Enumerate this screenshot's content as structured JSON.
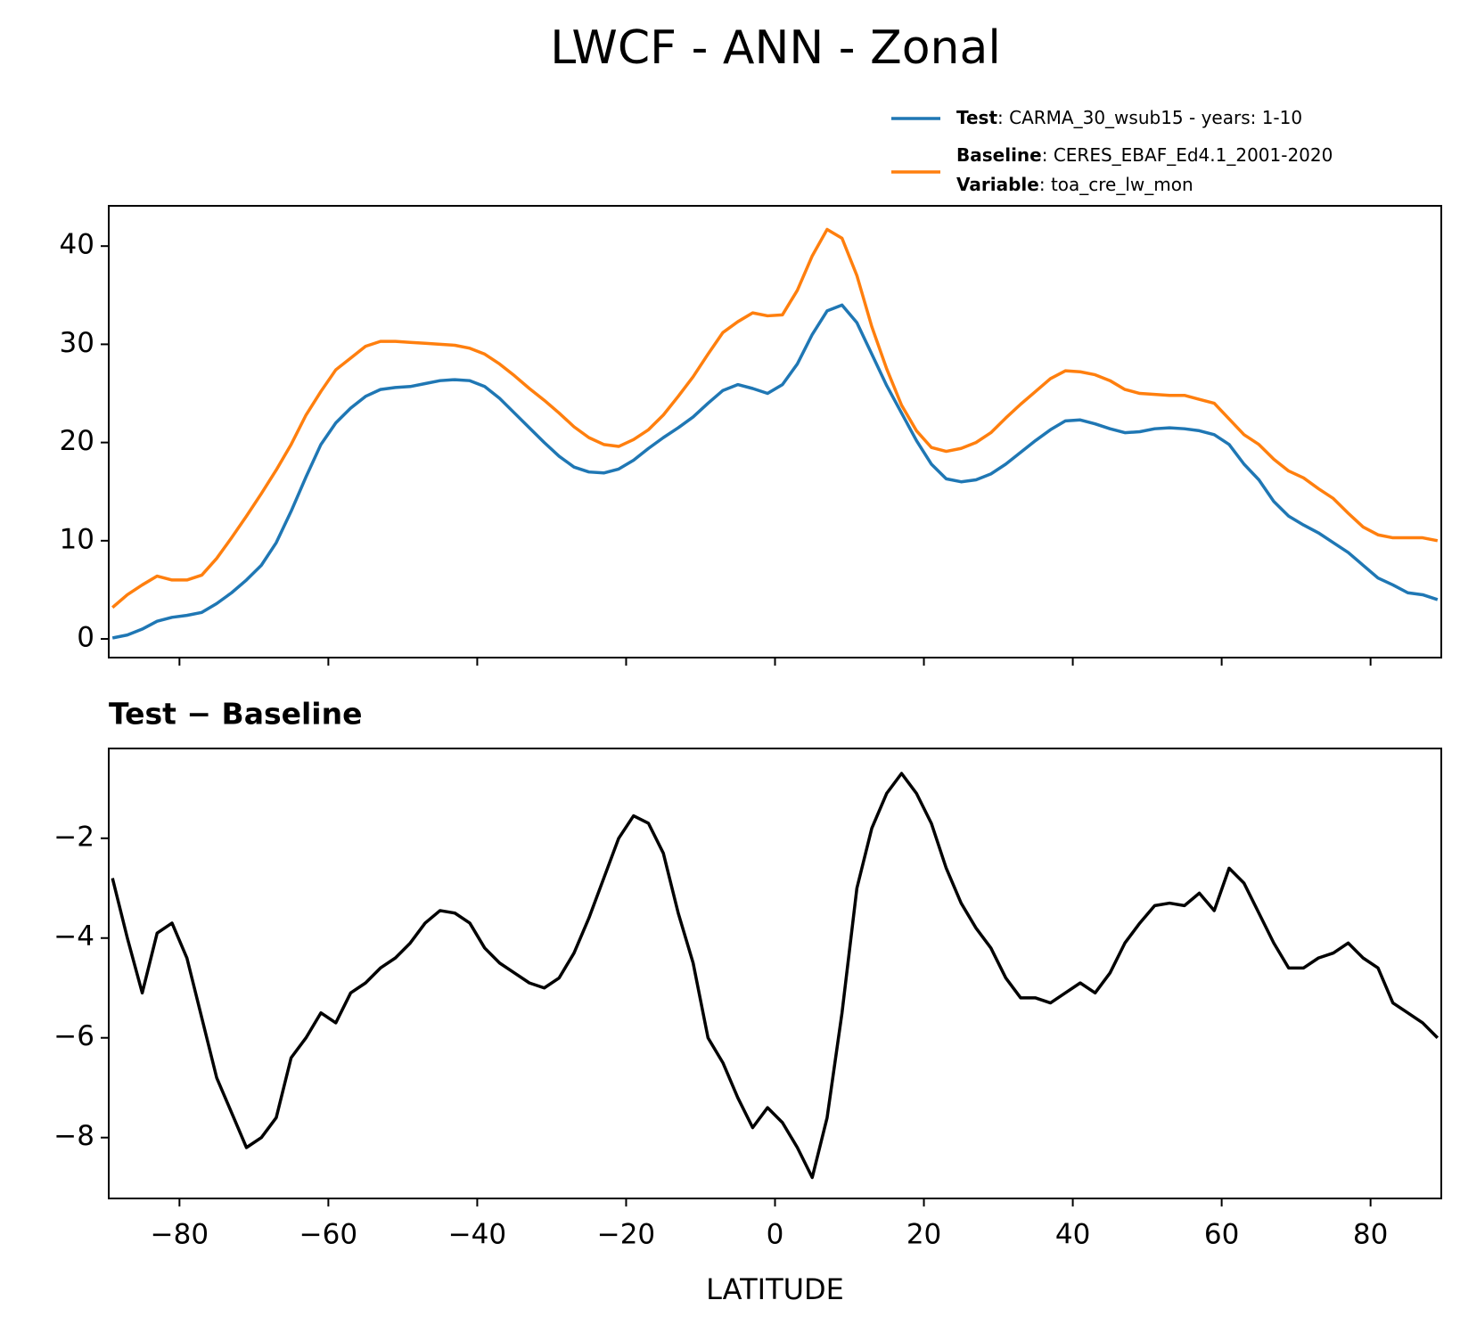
{
  "title": "LWCF - ANN - Zonal",
  "chart_data": [
    {
      "type": "line",
      "x": [
        -89,
        -87,
        -85,
        -83,
        -81,
        -79,
        -77,
        -75,
        -73,
        -71,
        -69,
        -67,
        -65,
        -63,
        -61,
        -59,
        -57,
        -55,
        -53,
        -51,
        -49,
        -47,
        -45,
        -43,
        -41,
        -39,
        -37,
        -35,
        -33,
        -31,
        -29,
        -27,
        -25,
        -23,
        -21,
        -19,
        -17,
        -15,
        -13,
        -11,
        -9,
        -7,
        -5,
        -3,
        -1,
        1,
        3,
        5,
        7,
        9,
        11,
        13,
        15,
        17,
        19,
        21,
        23,
        25,
        27,
        29,
        31,
        33,
        35,
        37,
        39,
        41,
        43,
        45,
        47,
        49,
        51,
        53,
        55,
        57,
        59,
        61,
        63,
        65,
        67,
        69,
        71,
        73,
        75,
        77,
        79,
        81,
        83,
        85,
        87,
        89
      ],
      "series": [
        {
          "name": "Test",
          "legend_text": ": CARMA_30_wsub15 - years: 1-10",
          "color": "#1f77b4",
          "values": [
            0.1,
            0.4,
            1.0,
            1.8,
            2.2,
            2.4,
            2.7,
            3.6,
            4.7,
            6.0,
            7.5,
            9.8,
            13,
            16.5,
            19.8,
            22,
            23.5,
            24.7,
            25.4,
            25.6,
            25.7,
            26.0,
            26.3,
            26.4,
            26.3,
            25.7,
            24.5,
            23.0,
            21.5,
            20.0,
            18.6,
            17.5,
            17.0,
            16.9,
            17.3,
            18.2,
            19.4,
            20.5,
            21.5,
            22.6,
            24.0,
            25.3,
            25.9,
            25.5,
            25.0,
            25.9,
            28,
            31,
            33.4,
            34,
            32.2,
            29,
            25.8,
            23,
            20.2,
            17.8,
            16.3,
            16.0,
            16.2,
            16.8,
            17.8,
            19.0,
            20.2,
            21.3,
            22.2,
            22.3,
            21.9,
            21.4,
            21.0,
            21.1,
            21.4,
            21.5,
            21.4,
            21.2,
            20.8,
            19.8,
            17.8,
            16.2,
            14.0,
            12.5,
            11.6,
            10.8,
            9.8,
            8.8,
            7.5,
            6.2,
            5.5,
            4.7,
            4.5,
            4.0
          ]
        },
        {
          "name": "Baseline",
          "legend_text": ": CERES_EBAF_Ed4.1_2001-2020",
          "color": "#ff7f0e",
          "values": [
            3.2,
            4.5,
            5.5,
            6.4,
            6.0,
            6.0,
            6.5,
            8.2,
            10.3,
            12.5,
            14.8,
            17.2,
            19.8,
            22.8,
            25.2,
            27.4,
            28.6,
            29.8,
            30.3,
            30.3,
            30.2,
            30.1,
            30.0,
            29.9,
            29.6,
            29.0,
            28.0,
            26.8,
            25.5,
            24.3,
            23.0,
            21.6,
            20.5,
            19.8,
            19.6,
            20.3,
            21.3,
            22.8,
            24.7,
            26.7,
            29,
            31.2,
            32.3,
            33.2,
            32.9,
            33,
            35.5,
            39,
            41.7,
            40.8,
            37,
            31.8,
            27.5,
            23.8,
            21.2,
            19.5,
            19.1,
            19.4,
            20.0,
            21.0,
            22.5,
            23.9,
            25.2,
            26.5,
            27.3,
            27.2,
            26.9,
            26.3,
            25.4,
            25.0,
            24.9,
            24.8,
            24.8,
            24.4,
            24.0,
            22.4,
            20.8,
            19.8,
            18.3,
            17.1,
            16.4,
            15.3,
            14.3,
            12.8,
            11.4,
            10.6,
            10.3,
            10.3,
            10.3,
            10.0
          ]
        }
      ],
      "legend_extra": {
        "name": "Variable",
        "text": ": toa_cre_lw_mon"
      },
      "xlim": [
        -89.5,
        89.5
      ],
      "xticks": [
        -80,
        -60,
        -40,
        -20,
        0,
        20,
        40,
        60,
        80
      ],
      "ylim": [
        -1.9,
        44.1
      ],
      "yticks": [
        0,
        10,
        20,
        30,
        40
      ]
    },
    {
      "type": "line",
      "title": "Test − Baseline",
      "xlabel": "LATITUDE",
      "x": [
        -89,
        -87,
        -85,
        -83,
        -81,
        -79,
        -77,
        -75,
        -73,
        -71,
        -69,
        -67,
        -65,
        -63,
        -61,
        -59,
        -57,
        -55,
        -53,
        -51,
        -49,
        -47,
        -45,
        -43,
        -41,
        -39,
        -37,
        -35,
        -33,
        -31,
        -29,
        -27,
        -25,
        -23,
        -21,
        -19,
        -17,
        -15,
        -13,
        -11,
        -9,
        -7,
        -5,
        -3,
        -1,
        1,
        3,
        5,
        7,
        9,
        11,
        13,
        15,
        17,
        19,
        21,
        23,
        25,
        27,
        29,
        31,
        33,
        35,
        37,
        39,
        41,
        43,
        45,
        47,
        49,
        51,
        53,
        55,
        57,
        59,
        61,
        63,
        65,
        67,
        69,
        71,
        73,
        75,
        77,
        79,
        81,
        83,
        85,
        87,
        89
      ],
      "series": [
        {
          "color": "#000000",
          "values": [
            -2.8,
            -4.0,
            -5.1,
            -3.9,
            -3.7,
            -4.4,
            -5.6,
            -6.8,
            -7.5,
            -8.2,
            -8.0,
            -7.6,
            -6.4,
            -6.0,
            -5.5,
            -5.7,
            -5.1,
            -4.9,
            -4.6,
            -4.4,
            -4.1,
            -3.7,
            -3.45,
            -3.5,
            -3.7,
            -4.2,
            -4.5,
            -4.7,
            -4.9,
            -5.0,
            -4.8,
            -4.3,
            -3.6,
            -2.8,
            -2.0,
            -1.55,
            -1.7,
            -2.3,
            -3.5,
            -4.5,
            -6.0,
            -6.5,
            -7.2,
            -7.8,
            -7.4,
            -7.7,
            -8.2,
            -8.8,
            -7.6,
            -5.5,
            -3.0,
            -1.8,
            -1.1,
            -0.7,
            -1.1,
            -1.7,
            -2.6,
            -3.3,
            -3.8,
            -4.2,
            -4.8,
            -5.2,
            -5.2,
            -5.3,
            -5.1,
            -4.9,
            -5.1,
            -4.7,
            -4.1,
            -3.7,
            -3.35,
            -3.3,
            -3.35,
            -3.1,
            -3.45,
            -2.6,
            -2.9,
            -3.5,
            -4.1,
            -4.6,
            -4.6,
            -4.4,
            -4.3,
            -4.1,
            -4.4,
            -4.6,
            -5.3,
            -5.5,
            -5.7,
            -6.0
          ]
        }
      ],
      "xlim": [
        -89.5,
        89.5
      ],
      "xticks": [
        {
          "value": -80,
          "label": "−80"
        },
        {
          "value": -60,
          "label": "−60"
        },
        {
          "value": -40,
          "label": "−40"
        },
        {
          "value": -20,
          "label": "−20"
        },
        0,
        20,
        40,
        60,
        80
      ],
      "ylim": [
        -9.22,
        -0.2
      ],
      "yticks": [
        {
          "value": -8,
          "label": "−8"
        },
        {
          "value": -6,
          "label": "−6"
        },
        {
          "value": -4,
          "label": "−4"
        },
        {
          "value": -2,
          "label": "−2"
        }
      ]
    }
  ]
}
